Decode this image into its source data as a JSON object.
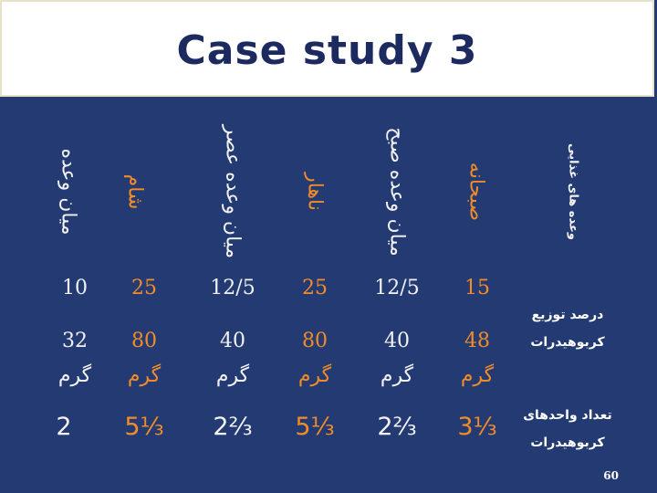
{
  "title": "Case study 3",
  "colors": {
    "background": "#233a72",
    "accent": "#f28c28",
    "text": "#f2f2f2",
    "title": "#1d2a60"
  },
  "columns": [
    {
      "header": "وعده های غذایی",
      "kind": "rowheader"
    },
    {
      "header": "صبحانه",
      "percent": "15",
      "grams": "48",
      "unit": "گرم",
      "units": "3⅓",
      "color": "orange"
    },
    {
      "header": "میان وعده صبح",
      "percent": "12/5",
      "grams": "40",
      "unit": "گرم",
      "units": "2⅔",
      "color": "white"
    },
    {
      "header": "ناهار",
      "percent": "25",
      "grams": "80",
      "unit": "گرم",
      "units": "5⅓",
      "color": "orange"
    },
    {
      "header": "میان وعده عصر",
      "percent": "12/5",
      "grams": "40",
      "unit": "گرم",
      "units": "2⅔",
      "color": "white"
    },
    {
      "header": "شام",
      "percent": "25",
      "grams": "80",
      "unit": "گرم",
      "units": "5⅓",
      "color": "orange"
    },
    {
      "header": "میان وعده",
      "percent": "10",
      "grams": "32",
      "unit": "گرم",
      "units": "2",
      "color": "white"
    }
  ],
  "row_labels": {
    "distribution_line1": "درصد توزیع",
    "distribution_line2": "کربوهیدرات",
    "units_line1": "تعداد واحدهای",
    "units_line2": "کربوهیدرات"
  },
  "page_number": "60"
}
